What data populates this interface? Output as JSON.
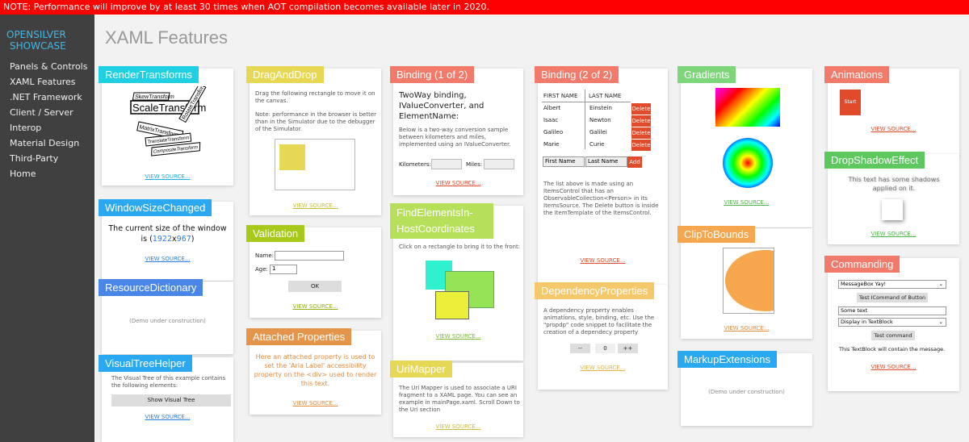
{
  "banner": {
    "text": "NOTE: Performance will improve by at least 30 times when AOT compilation becomes available later in 2020.",
    "color": "#fe0000"
  },
  "sidebar": {
    "brand_line1": "OPENSILVER",
    "brand_line2": "SHOWCASE",
    "items": [
      {
        "label": "Panels & Controls"
      },
      {
        "label": "XAML Features"
      },
      {
        "label": ".NET Framework"
      },
      {
        "label": "Client / Server"
      },
      {
        "label": "Interop"
      },
      {
        "label": "Material Design"
      },
      {
        "label": "Third-Party"
      },
      {
        "label": "Home"
      }
    ]
  },
  "page": {
    "title": "XAML Features",
    "view_source": "VIEW SOURCE..."
  },
  "cards": {
    "render_transforms": {
      "title": "RenderTransforms",
      "color": "#1fd0e3",
      "labels": [
        "SkewTransform",
        "ScaleTransform",
        "RotateTransform",
        "MatrixTransform",
        "TranslateTransform",
        "CompositeTransform"
      ]
    },
    "window_size": {
      "title": "WindowSizeChanged",
      "color": "#2aa8f0",
      "text1": "The current size of the window",
      "text2a": "is (",
      "width": "1922",
      "x": "x",
      "height": "967",
      "text2b": ")"
    },
    "resource_dictionary": {
      "title": "ResourceDictionary",
      "color": "#4a86e8",
      "demo": "(Demo under construction)"
    },
    "visual_tree": {
      "title": "VisualTreeHelper",
      "color": "#2aa8f0",
      "desc": "The Visual Tree of this example contains the following elements:",
      "button": "Show Visual Tree"
    },
    "drag_drop": {
      "title": "DragAndDrop",
      "color": "#e6d854",
      "desc1": "Drag the following rectangle to move it on the canvas.",
      "desc2": "Note: performance in the browser is better than in the Simulator due to the debugger of the Simulator."
    },
    "validation": {
      "title": "Validation",
      "color": "#a6c91a",
      "name_label": "Name:",
      "age_label": "Age:",
      "age_value": "1",
      "ok": "OK"
    },
    "attached": {
      "title": "Attached Properties",
      "color": "#e4954a",
      "text": "Here an attached property is used to set the 'Aria Label' accessibility property on the <div> used to render this text."
    },
    "binding1": {
      "title": "Binding (1 of 2)",
      "color": "#f27a6a",
      "heading": "TwoWay binding, IValueConverter, and ElementName:",
      "desc": "Below is a two-way conversion sample between kilometers and miles, implemented using an IValueConverter.",
      "km": "Kilometers:",
      "miles": "Miles:"
    },
    "find_elements": {
      "title": "FindElementsIn-HostCoordinates",
      "color": "#b6e05a",
      "desc": "Click on a rectangle to bring it to the front:"
    },
    "uri_mapper": {
      "title": "UriMapper",
      "color": "#e6d854",
      "desc": "The Uri Mapper is used to associate a URI fragment to a XAML page. You can see an example in mainPage.xaml. Scroll Down to the Uri section"
    },
    "binding2": {
      "title": "Binding (2 of 2)",
      "color": "#f27a6a",
      "col1": "FIRST NAME",
      "col2": "LAST NAME",
      "rows": [
        {
          "first": "Albert",
          "last": "Einstein"
        },
        {
          "first": "Isaac",
          "last": "Newton"
        },
        {
          "first": "Galileo",
          "last": "Galilei"
        },
        {
          "first": "Marie",
          "last": "Curie"
        }
      ],
      "delete": "Delete",
      "first_ph": "First Name",
      "last_ph": "Last Name",
      "add": "Add",
      "desc": "The list above is made using an ItemsControl that has an ObservableCollection<Person> in its ItemsSource. The Delete button is inside the ItemTemplate of the ItemsControl."
    },
    "dependency": {
      "title": "DependencyProperties",
      "color": "#f5c96b",
      "desc": "A dependency property enables animations, style, binding, etc. Use the \"propdp\" code snippet to facilitate the creation of a dependecy property",
      "minus": "--",
      "value": "0",
      "plus": "++"
    },
    "gradients": {
      "title": "Gradients",
      "color": "#7ed67a"
    },
    "clip": {
      "title": "ClipToBounds",
      "color": "#f6a64d"
    },
    "markup": {
      "title": "MarkupExtensions",
      "color": "#2aa8f0",
      "demo": "(Demo under construction)"
    },
    "animations": {
      "title": "Animations",
      "color": "#f27a6a",
      "start": "Start"
    },
    "drop_shadow": {
      "title": "DropShadowEffect",
      "color": "#5cc85e",
      "text": "This text has some shadows applied on it."
    },
    "commanding": {
      "title": "Commanding",
      "color": "#f27a6a",
      "combo1": "MessageBox Yay!",
      "btn1": "Test ICommand of Button",
      "textbox": "Some text",
      "combo2": "Display in TextBlock",
      "btn2": "Test command",
      "result": "This TextBlock will contain the message."
    }
  }
}
